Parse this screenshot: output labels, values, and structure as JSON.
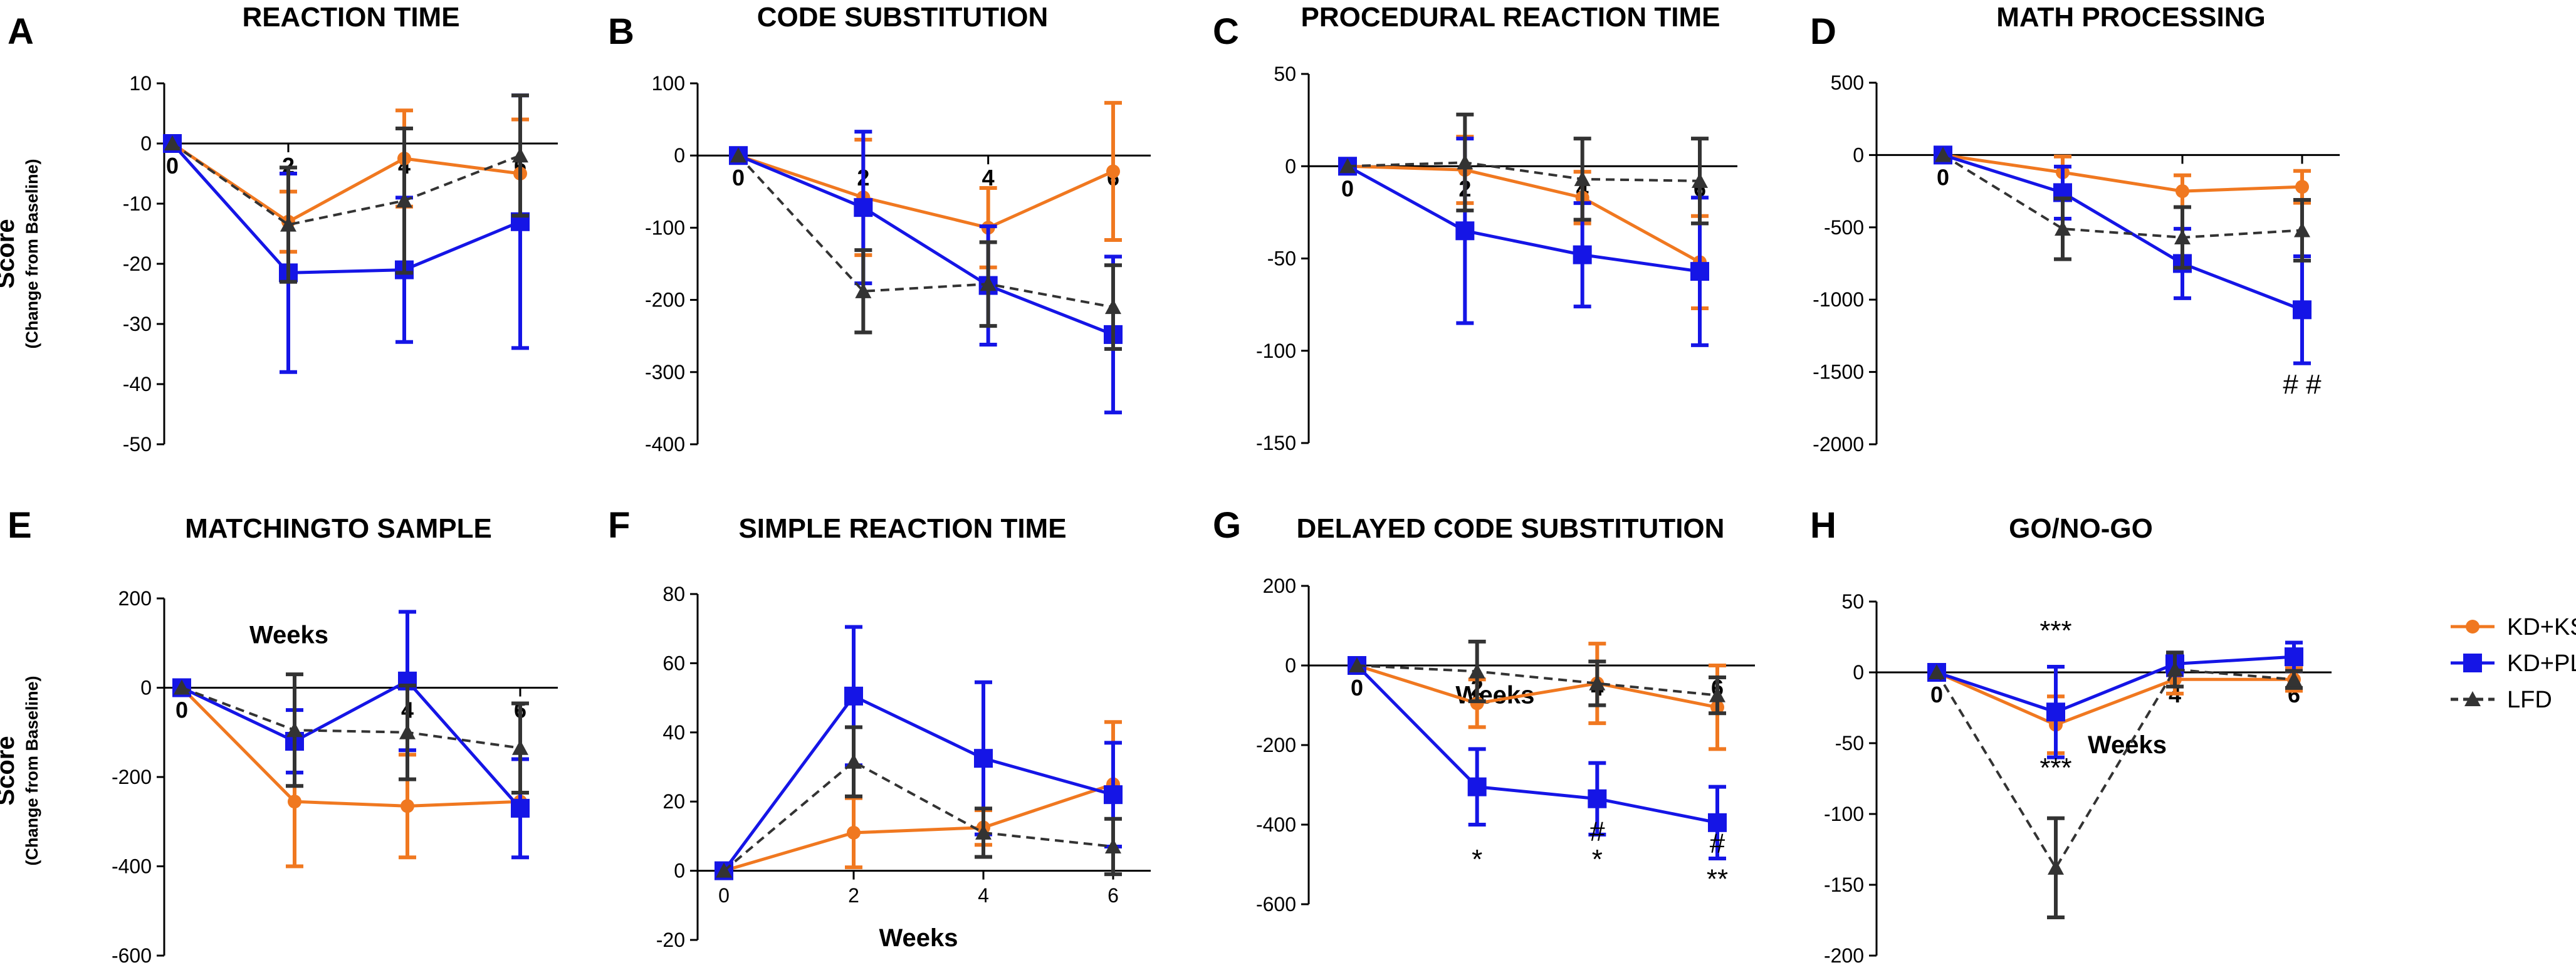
{
  "legend": [
    {
      "name": "KD+KS",
      "color": "#F07820",
      "marker": "circle",
      "dash": false
    },
    {
      "name": "KD+PL",
      "color": "#1515E6",
      "marker": "square",
      "dash": false
    },
    {
      "name": "LFD",
      "color": "#333333",
      "marker": "triangle",
      "dash": true
    }
  ],
  "ylabel_main": "Score",
  "ylabel_sub": "(Change from Baseline)",
  "chart_data": [
    {
      "type": "line",
      "letter": "A",
      "title": "REACTION TIME",
      "x": [
        0,
        2,
        4,
        6
      ],
      "x_tick_labels": [
        "0",
        "2",
        "4",
        "6"
      ],
      "x_labels_style": "inline",
      "xlabel": "",
      "ylim": [
        -50,
        10
      ],
      "yticks": [
        10,
        0,
        -10,
        -20,
        -30,
        -40,
        -50
      ],
      "ytick_labels": [
        "10",
        "0",
        "-10",
        "-20",
        "-30",
        "-40",
        "-50"
      ],
      "series": [
        {
          "name": "KD+KS",
          "values": [
            0,
            -13,
            -2.5,
            -5
          ],
          "err": [
            0,
            5,
            8,
            9
          ]
        },
        {
          "name": "KD+PL",
          "values": [
            0,
            -21.5,
            -21,
            -13
          ],
          "err": [
            0,
            16.5,
            12,
            21
          ]
        },
        {
          "name": "LFD",
          "values": [
            0,
            -13.5,
            -9.5,
            -2
          ],
          "err": [
            0,
            9.5,
            12,
            10
          ]
        }
      ],
      "annotations": []
    },
    {
      "type": "line",
      "letter": "B",
      "title": "CODE SUBSTITUTION",
      "x": [
        0,
        2,
        4,
        6
      ],
      "x_tick_labels": [
        "0",
        "2",
        "4",
        "6"
      ],
      "x_labels_style": "inline",
      "xlabel": "",
      "ylim": [
        -400,
        100
      ],
      "yticks": [
        100,
        0,
        -100,
        -200,
        -300,
        -400
      ],
      "ytick_labels": [
        "100",
        "0",
        "-100",
        "-200",
        "-300",
        "-400"
      ],
      "series": [
        {
          "name": "KD+KS",
          "values": [
            0,
            -58,
            -100,
            -22
          ],
          "err": [
            0,
            80,
            55,
            95
          ]
        },
        {
          "name": "KD+PL",
          "values": [
            0,
            -72,
            -180,
            -248
          ],
          "err": [
            0,
            105,
            82,
            108
          ]
        },
        {
          "name": "LFD",
          "values": [
            0,
            -188,
            -178,
            -210
          ],
          "err": [
            0,
            57,
            58,
            58
          ]
        }
      ],
      "annotations": []
    },
    {
      "type": "line",
      "letter": "C",
      "title": "PROCEDURAL REACTION TIME",
      "x": [
        0,
        2,
        4,
        6
      ],
      "x_tick_labels": [
        "0",
        "2",
        "4",
        "6"
      ],
      "x_labels_style": "inline",
      "xlabel": "",
      "ylim": [
        -150,
        50
      ],
      "yticks": [
        50,
        0,
        -50,
        -100,
        -150
      ],
      "ytick_labels": [
        "50",
        "0",
        "-50",
        "-100",
        "-150"
      ],
      "series": [
        {
          "name": "KD+KS",
          "values": [
            0,
            -2,
            -17,
            -52
          ],
          "err": [
            0,
            18,
            14,
            25
          ]
        },
        {
          "name": "KD+PL",
          "values": [
            0,
            -35,
            -48,
            -57
          ],
          "err": [
            0,
            50,
            28,
            40
          ]
        },
        {
          "name": "LFD",
          "values": [
            0,
            2,
            -7,
            -8
          ],
          "err": [
            0,
            26,
            22,
            23
          ]
        }
      ],
      "annotations": []
    },
    {
      "type": "line",
      "letter": "D",
      "title": "MATH PROCESSING",
      "x": [
        0,
        2,
        4,
        6
      ],
      "x_tick_labels": [
        "0",
        "",
        "",
        ""
      ],
      "x_labels_style": "inline",
      "xlabel": "",
      "ylim": [
        -2000,
        500
      ],
      "yticks": [
        500,
        0,
        -500,
        -1000,
        -1500,
        -2000
      ],
      "ytick_labels": [
        "500",
        "0",
        "-500",
        "-1000",
        "-1500",
        "-2000"
      ],
      "series": [
        {
          "name": "KD+KS",
          "values": [
            0,
            -120,
            -250,
            -220
          ],
          "err": [
            0,
            110,
            110,
            110
          ]
        },
        {
          "name": "KD+PL",
          "values": [
            0,
            -260,
            -750,
            -1070
          ],
          "err": [
            0,
            180,
            240,
            370
          ]
        },
        {
          "name": "LFD",
          "values": [
            0,
            -510,
            -570,
            -520
          ],
          "err": [
            0,
            210,
            210,
            210
          ]
        }
      ],
      "annotations": [
        {
          "x": 6,
          "y": -1650,
          "text": "# #"
        }
      ]
    },
    {
      "type": "line",
      "letter": "E",
      "title": "MATCHINGTO SAMPLE",
      "x": [
        0,
        2,
        4,
        6
      ],
      "x_tick_labels": [
        "0",
        "",
        "4",
        "6"
      ],
      "x_labels_style": "inline",
      "xlabel": "Weeks",
      "ylim": [
        -600,
        200
      ],
      "yticks": [
        200,
        0,
        -200,
        -400,
        -600
      ],
      "ytick_labels": [
        "200",
        "0",
        "-200",
        "-400",
        "-600"
      ],
      "series": [
        {
          "name": "KD+KS",
          "values": [
            0,
            -255,
            -265,
            -255
          ],
          "err": [
            0,
            145,
            115,
            0
          ]
        },
        {
          "name": "KD+PL",
          "values": [
            0,
            -120,
            15,
            -270
          ],
          "err": [
            0,
            70,
            155,
            110
          ]
        },
        {
          "name": "LFD",
          "values": [
            0,
            -95,
            -100,
            -135
          ],
          "err": [
            0,
            125,
            105,
            100
          ]
        }
      ],
      "annotations": []
    },
    {
      "type": "line",
      "letter": "F",
      "title": "SIMPLE REACTION TIME",
      "x": [
        0,
        2,
        4,
        6
      ],
      "x_tick_labels": [
        "0",
        "2",
        "4",
        "6"
      ],
      "x_labels_style": "below",
      "xlabel": "Weeks",
      "ylim": [
        -20,
        80
      ],
      "yticks": [
        80,
        60,
        40,
        20,
        0,
        -20
      ],
      "ytick_labels": [
        "80",
        "60",
        "40",
        "20",
        "0",
        "-20"
      ],
      "series": [
        {
          "name": "KD+KS",
          "values": [
            0,
            11,
            12.5,
            25
          ],
          "err": [
            0,
            10,
            5,
            18
          ]
        },
        {
          "name": "KD+PL",
          "values": [
            0,
            50.5,
            32.5,
            22
          ],
          "err": [
            0,
            20,
            22,
            15
          ]
        },
        {
          "name": "LFD",
          "values": [
            0,
            31.5,
            11,
            7
          ],
          "err": [
            0,
            10,
            7,
            8
          ]
        }
      ],
      "annotations": []
    },
    {
      "type": "line",
      "letter": "G",
      "title": "DELAYED CODE SUBSTITUTION",
      "x": [
        0,
        2,
        4,
        6
      ],
      "x_tick_labels": [
        "0",
        "2",
        "4",
        "6"
      ],
      "x_labels_style": "inline",
      "xlabel": "Weeks",
      "ylim": [
        -600,
        200
      ],
      "yticks": [
        200,
        0,
        -200,
        -400,
        -600
      ],
      "ytick_labels": [
        "200",
        "0",
        "-200",
        "-400",
        "-600"
      ],
      "series": [
        {
          "name": "KD+KS",
          "values": [
            0,
            -95,
            -45,
            -105
          ],
          "err": [
            0,
            60,
            100,
            105
          ]
        },
        {
          "name": "KD+PL",
          "values": [
            0,
            -305,
            -335,
            -395
          ],
          "err": [
            0,
            95,
            90,
            90
          ]
        },
        {
          "name": "LFD",
          "values": [
            0,
            -15,
            -45,
            -75
          ],
          "err": [
            0,
            75,
            55,
            45
          ]
        }
      ],
      "annotations": [
        {
          "x": 2,
          "y": -510,
          "text": "*"
        },
        {
          "x": 4,
          "y": -440,
          "text": "#"
        },
        {
          "x": 4,
          "y": -510,
          "text": "*"
        },
        {
          "x": 6,
          "y": -470,
          "text": "#"
        },
        {
          "x": 6,
          "y": -560,
          "text": "**"
        }
      ]
    },
    {
      "type": "line",
      "letter": "H",
      "title": "GO/NO-GO",
      "x": [
        0,
        2,
        4,
        6
      ],
      "x_tick_labels": [
        "0",
        "",
        "4",
        "6"
      ],
      "x_labels_style": "inline",
      "xlabel": "Weeks",
      "ylim": [
        -200,
        50
      ],
      "yticks": [
        50,
        0,
        -50,
        -100,
        -150,
        -200
      ],
      "ytick_labels": [
        "50",
        "0",
        "-50",
        "-100",
        "-150",
        "-200"
      ],
      "series": [
        {
          "name": "KD+KS",
          "values": [
            0,
            -37,
            -5,
            -5
          ],
          "err": [
            0,
            20,
            10,
            8
          ]
        },
        {
          "name": "KD+PL",
          "values": [
            0,
            -28,
            6,
            11
          ],
          "err": [
            0,
            32,
            8,
            10
          ]
        },
        {
          "name": "LFD",
          "values": [
            0,
            -138,
            2,
            -5
          ],
          "err": [
            0,
            35,
            12,
            6
          ]
        }
      ],
      "annotations": [
        {
          "x": 2,
          "y": 23,
          "text": "***"
        },
        {
          "x": 2,
          "y": -74,
          "text": "***"
        }
      ]
    }
  ]
}
